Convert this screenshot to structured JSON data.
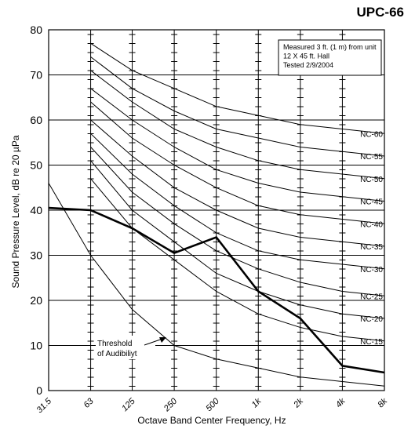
{
  "chart_data": {
    "type": "line",
    "title": "UPC-66",
    "xlabel": "Octave Band Center Frequency, Hz",
    "ylabel": "Sound Pressure Level, dB re 20 µPa",
    "x_scale": "log",
    "x_ticks": [
      "31.5",
      "63",
      "125",
      "250",
      "500",
      "1k",
      "2k",
      "4k",
      "8k"
    ],
    "x_values": [
      31.5,
      63,
      125,
      250,
      500,
      1000,
      2000,
      4000,
      8000
    ],
    "ylim": [
      0,
      80
    ],
    "y_ticks": [
      0,
      10,
      20,
      30,
      40,
      50,
      60,
      70,
      80
    ],
    "grid": true,
    "note_lines": [
      "Measured 3 ft. (1 m) from unit",
      "12 X 45 ft. Hall",
      "Tested 2/9/2004"
    ],
    "threshold_label_lines": [
      "Threshold",
      "of Audibiliyt"
    ],
    "measured": {
      "x": [
        31.5,
        63,
        125,
        250,
        500,
        1000,
        2000,
        4000,
        8000
      ],
      "values": [
        40.5,
        40,
        36,
        30.5,
        34,
        22,
        16,
        5.5,
        4
      ]
    },
    "threshold": {
      "x": [
        31.5,
        63,
        125,
        250,
        500,
        1000,
        2000,
        4000,
        8000
      ],
      "values": [
        46,
        30,
        18,
        10,
        7,
        5,
        3,
        2,
        1
      ]
    },
    "nc_curves": [
      {
        "name": "NC-60",
        "x": [
          63,
          125,
          250,
          500,
          1000,
          2000,
          4000,
          8000
        ],
        "values": [
          77,
          71,
          67,
          63,
          61,
          59,
          58,
          57
        ]
      },
      {
        "name": "NC-55",
        "x": [
          63,
          125,
          250,
          500,
          1000,
          2000,
          4000,
          8000
        ],
        "values": [
          74,
          67,
          62,
          58,
          56,
          54,
          53,
          52
        ]
      },
      {
        "name": "NC-50",
        "x": [
          63,
          125,
          250,
          500,
          1000,
          2000,
          4000,
          8000
        ],
        "values": [
          71,
          64,
          58,
          54,
          51,
          49,
          48,
          47
        ]
      },
      {
        "name": "NC-45",
        "x": [
          63,
          125,
          250,
          500,
          1000,
          2000,
          4000,
          8000
        ],
        "values": [
          67,
          60,
          54,
          49,
          46,
          44,
          43,
          42
        ]
      },
      {
        "name": "NC-40",
        "x": [
          63,
          125,
          250,
          500,
          1000,
          2000,
          4000,
          8000
        ],
        "values": [
          64,
          56,
          50,
          45,
          41,
          39,
          38,
          37
        ]
      },
      {
        "name": "NC-35",
        "x": [
          63,
          125,
          250,
          500,
          1000,
          2000,
          4000,
          8000
        ],
        "values": [
          60,
          52,
          45,
          40,
          36,
          34,
          33,
          32
        ]
      },
      {
        "name": "NC-30",
        "x": [
          63,
          125,
          250,
          500,
          1000,
          2000,
          4000,
          8000
        ],
        "values": [
          57,
          48,
          41,
          35,
          31,
          29,
          28,
          27
        ]
      },
      {
        "name": "NC-25",
        "x": [
          63,
          125,
          250,
          500,
          1000,
          2000,
          4000,
          8000
        ],
        "values": [
          54,
          44,
          37,
          31,
          27,
          24,
          22,
          21
        ]
      },
      {
        "name": "NC-20",
        "x": [
          63,
          125,
          250,
          500,
          1000,
          2000,
          4000,
          8000
        ],
        "values": [
          51,
          40,
          33,
          26,
          22,
          19,
          17,
          16
        ]
      },
      {
        "name": "NC-15",
        "x": [
          63,
          125,
          250,
          500,
          1000,
          2000,
          4000,
          8000
        ],
        "values": [
          47,
          36,
          29,
          22,
          17,
          14,
          12,
          11
        ]
      }
    ]
  }
}
